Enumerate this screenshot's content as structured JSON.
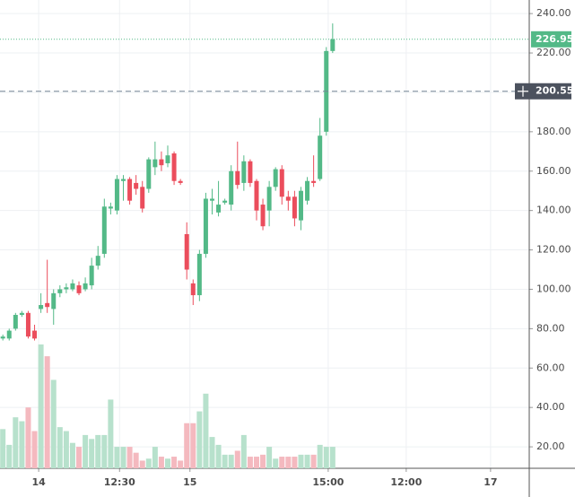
{
  "chart_data": {
    "type": "candlestick",
    "x": [
      0,
      1,
      2,
      3,
      4,
      5,
      6,
      7,
      8,
      9,
      10,
      11,
      12,
      13,
      14,
      15,
      16,
      17,
      18,
      19,
      20,
      21,
      22,
      23,
      24,
      25,
      26,
      27,
      28,
      29,
      30,
      31,
      32,
      33,
      34,
      35,
      36,
      37,
      38,
      39,
      40,
      41,
      42,
      43,
      44,
      45,
      46,
      47,
      48,
      49,
      50,
      51,
      52
    ],
    "open": [
      75,
      75,
      80,
      87,
      88,
      79,
      90,
      93,
      90,
      98,
      100,
      100,
      102,
      100,
      102,
      112,
      118,
      141,
      140,
      155,
      156,
      154,
      152,
      151,
      162,
      166,
      164,
      169,
      155,
      128,
      103,
      97,
      118,
      145,
      139,
      144,
      143,
      160,
      154,
      165,
      155,
      143,
      140,
      152,
      161,
      147,
      147,
      135,
      145,
      155,
      156,
      180,
      221
    ],
    "high": [
      77,
      80,
      88,
      89,
      89,
      82,
      98,
      115,
      100,
      102,
      103,
      105,
      104,
      106,
      116,
      122,
      146,
      144,
      158,
      158,
      157,
      158,
      155,
      167,
      175,
      170,
      173,
      170,
      156,
      134,
      105,
      120,
      149,
      151,
      155,
      146,
      163,
      175,
      168,
      166,
      156,
      146,
      155,
      162,
      163,
      150,
      150,
      152,
      157,
      168,
      187,
      223,
      235
    ],
    "low": [
      74,
      74,
      79,
      86,
      75,
      74,
      88,
      88,
      82,
      96,
      98,
      99,
      97,
      99,
      100,
      110,
      116,
      138,
      138,
      145,
      143,
      148,
      139,
      149,
      158,
      160,
      162,
      153,
      153,
      105,
      92,
      94,
      116,
      138,
      137,
      143,
      140,
      151,
      150,
      152,
      135,
      130,
      132,
      150,
      143,
      140,
      132,
      130,
      143,
      152,
      155,
      178,
      220
    ],
    "close": [
      76,
      79,
      87,
      88,
      76,
      75,
      92,
      91,
      98,
      100,
      101,
      103,
      98,
      103,
      112,
      117,
      142,
      142,
      156,
      156,
      145,
      151,
      141,
      166,
      166,
      163,
      168,
      155,
      154,
      110,
      97,
      118,
      146,
      146,
      143,
      145,
      160,
      153,
      165,
      154,
      140,
      132,
      152,
      161,
      147,
      145,
      136,
      150,
      155,
      154,
      178,
      221,
      227
    ],
    "volume": [
      29,
      21,
      35,
      33,
      40,
      28,
      72,
      66,
      54,
      30,
      28,
      22,
      20,
      26,
      24,
      26,
      26,
      44,
      20,
      20,
      20,
      17,
      13,
      14,
      20,
      15,
      14,
      15,
      13,
      32,
      32,
      38,
      47,
      25,
      21,
      16,
      16,
      18,
      26,
      15,
      15,
      16,
      20,
      14,
      15,
      15,
      15,
      16,
      16,
      16,
      21,
      20,
      20
    ],
    "up_color": "#53b987",
    "down_color": "#eb4d5c",
    "volume_up_color": "#b7e1cc",
    "volume_down_color": "#f4b9bf",
    "xlim": [
      -0.45,
      83
    ],
    "xticks": [
      {
        "value": 5.65,
        "label": "14"
      },
      {
        "value": 18.4,
        "label": "12:30"
      },
      {
        "value": 29.5,
        "label": "15"
      },
      {
        "value": 51.3,
        "label": "15:00"
      },
      {
        "value": 63.6,
        "label": "12:00"
      },
      {
        "value": 76.9,
        "label": "17"
      }
    ],
    "ylim": [
      9.1,
      246.9
    ],
    "yticks": [
      {
        "value": 20,
        "label": "20.00"
      },
      {
        "value": 40,
        "label": "40.00"
      },
      {
        "value": 60,
        "label": "60.00"
      },
      {
        "value": 80,
        "label": "80.00"
      },
      {
        "value": 100,
        "label": "100.00"
      },
      {
        "value": 120,
        "label": "120.00"
      },
      {
        "value": 140,
        "label": "140.00"
      },
      {
        "value": 160,
        "label": "160.00"
      },
      {
        "value": 180,
        "label": "180.00"
      },
      {
        "value": 200,
        "label": "200.00"
      },
      {
        "value": 220,
        "label": "220.00"
      },
      {
        "value": 240,
        "label": "240.00"
      }
    ],
    "last_price": {
      "value": 226.95,
      "label": "226.95",
      "color": "#53b987"
    },
    "crosshair_price": {
      "value": 200.55,
      "label": "200.55",
      "color": "#4c525e"
    },
    "grid": true
  }
}
